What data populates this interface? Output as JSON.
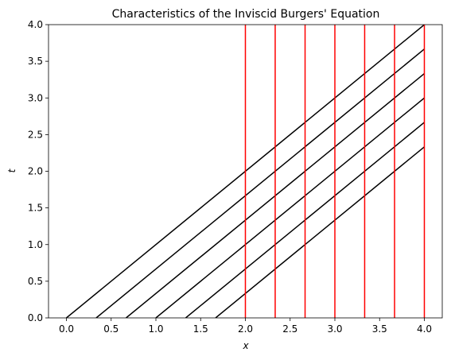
{
  "chart_data": {
    "type": "line",
    "title": "Characteristics of the Inviscid Burgers' Equation",
    "xlabel": "x",
    "ylabel": "t",
    "xlim": [
      -0.2,
      4.2
    ],
    "ylim": [
      0,
      4
    ],
    "xticks": [
      0.0,
      0.5,
      1.0,
      1.5,
      2.0,
      2.5,
      3.0,
      3.5,
      4.0
    ],
    "yticks": [
      0.0,
      0.5,
      1.0,
      1.5,
      2.0,
      2.5,
      3.0,
      3.5,
      4.0
    ],
    "xtick_labels": [
      "0.0",
      "0.5",
      "1.0",
      "1.5",
      "2.0",
      "2.5",
      "3.0",
      "3.5",
      "4.0"
    ],
    "ytick_labels": [
      "0.0",
      "0.5",
      "1.0",
      "1.5",
      "2.0",
      "2.5",
      "3.0",
      "3.5",
      "4.0"
    ],
    "grid": false,
    "legend": "none",
    "series": [
      {
        "color": "#000000",
        "x": [
          0.0,
          4.0
        ],
        "y": [
          0.0,
          4.0
        ]
      },
      {
        "color": "#000000",
        "x": [
          0.333,
          4.0
        ],
        "y": [
          0.0,
          3.667
        ]
      },
      {
        "color": "#000000",
        "x": [
          0.667,
          4.0
        ],
        "y": [
          0.0,
          3.333
        ]
      },
      {
        "color": "#000000",
        "x": [
          1.0,
          4.0
        ],
        "y": [
          0.0,
          3.0
        ]
      },
      {
        "color": "#000000",
        "x": [
          1.333,
          4.0
        ],
        "y": [
          0.0,
          2.667
        ]
      },
      {
        "color": "#000000",
        "x": [
          1.667,
          4.0
        ],
        "y": [
          0.0,
          2.333
        ]
      },
      {
        "color": "#ff0000",
        "x": [
          2.0,
          2.0
        ],
        "y": [
          0.0,
          4.0
        ]
      },
      {
        "color": "#ff0000",
        "x": [
          2.333,
          2.333
        ],
        "y": [
          0.0,
          4.0
        ]
      },
      {
        "color": "#ff0000",
        "x": [
          2.667,
          2.667
        ],
        "y": [
          0.0,
          4.0
        ]
      },
      {
        "color": "#ff0000",
        "x": [
          3.0,
          3.0
        ],
        "y": [
          0.0,
          4.0
        ]
      },
      {
        "color": "#ff0000",
        "x": [
          3.333,
          3.333
        ],
        "y": [
          0.0,
          4.0
        ]
      },
      {
        "color": "#ff0000",
        "x": [
          3.667,
          3.667
        ],
        "y": [
          0.0,
          4.0
        ]
      },
      {
        "color": "#ff0000",
        "x": [
          4.0,
          4.0
        ],
        "y": [
          0.0,
          4.0
        ]
      }
    ]
  }
}
